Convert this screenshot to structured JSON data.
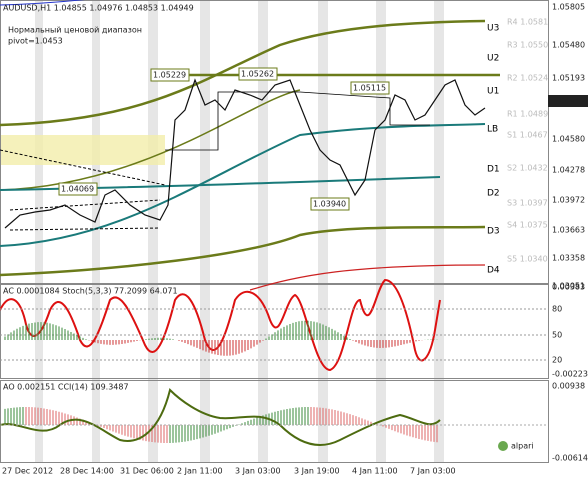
{
  "main": {
    "header": "AUDUSD,H1  1.04855 1.04976 1.04853 1.04949",
    "subtitle": "Нормальный ценовой диапазон",
    "pivot": "pivot=1.0453",
    "price_axis": [
      "1.05805",
      "1.05480",
      "1.05193",
      "1.04949",
      "1.04580",
      "1.04278",
      "1.03972",
      "1.03663",
      "1.03358",
      "1.03051"
    ],
    "levels": [
      "U3",
      "U2",
      "U1",
      "LB",
      "D1",
      "D2",
      "D3",
      "D4"
    ],
    "faded_levels": [
      "R4 1.0581",
      "R3 1.0550",
      "R2 1.0524",
      "R1 1.0489",
      "S1 1.0467",
      "S2 1.0432",
      "S3 1.0397",
      "S4 1.0375",
      "S5 1.0340"
    ],
    "callouts": [
      "1.05229",
      "1.05262",
      "1.05115",
      "1.04069",
      "1.03940"
    ]
  },
  "ac": {
    "header": "AC 0.0001084  Stoch(5,3,3) 77.2099 64.071",
    "axis": [
      "0.00383",
      "80",
      "50",
      "20",
      "-0.00223"
    ]
  },
  "ao": {
    "header": "AO 0.002151  CCI(14) 109.3487",
    "axis": [
      "0.00938",
      "-0.00614"
    ]
  },
  "x_axis": [
    "27 Dec 2012",
    "28 Dec 14:00",
    "31 Dec 06:00",
    "2 Jan 11:00",
    "3 Jan 03:00",
    "3 Jan 19:00",
    "4 Jan 11:00",
    "7 Jan 03:00"
  ],
  "brand": "alpari"
}
